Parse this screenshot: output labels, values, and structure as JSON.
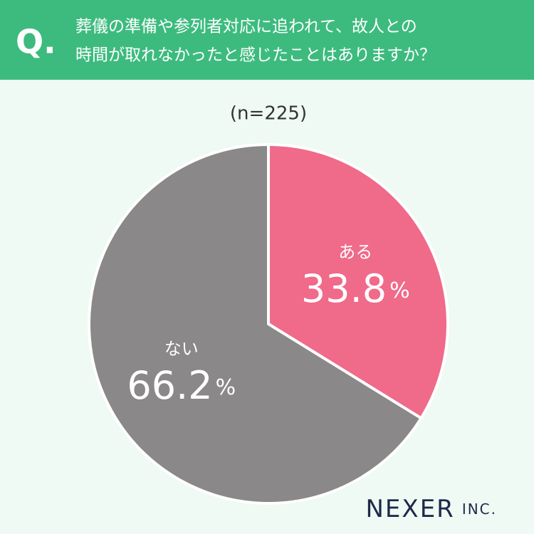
{
  "chart_data": {
    "type": "pie",
    "question_mark": "Q.",
    "title": [
      "葬儀の準備や参列者対応に追われて、故人との",
      "時間が取れなかったと感じたことはありますか？"
    ],
    "subtitle": "(n=225)",
    "categories": [
      "ある",
      "ない"
    ],
    "values": [
      33.8,
      66.2
    ],
    "value_labels": [
      "33.8%",
      "66.2%"
    ],
    "colors": [
      "#f06a8a",
      "#8a8888"
    ],
    "brand": [
      "NEXER",
      "INC."
    ]
  }
}
